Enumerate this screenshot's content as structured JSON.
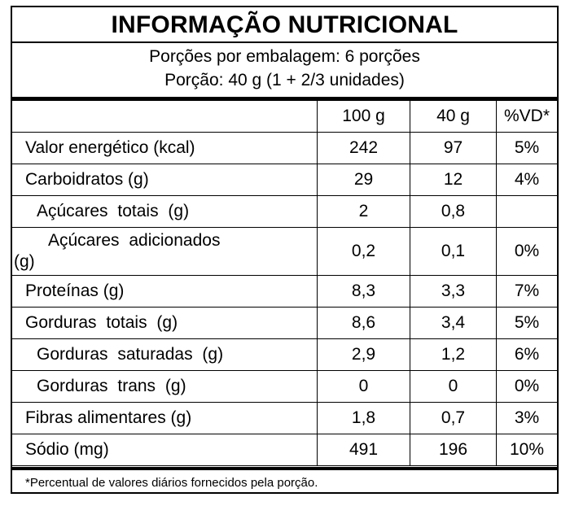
{
  "title": "INFORMAÇÃO NUTRICIONAL",
  "servings_per_package": "Porções por embalagem: 6 porções",
  "serving_size": "Porção: 40 g (1 + 2/3 unidades)",
  "columns": [
    "",
    "100 g",
    "40 g",
    "%VD*"
  ],
  "rows": [
    {
      "name": "Valor energético (kcal)",
      "v100": "242",
      "v40": "97",
      "vd": "5%"
    },
    {
      "name": "Carboidratos (g)",
      "v100": "29",
      "v40": "12",
      "vd": "4%"
    },
    {
      "name": "Açúcares totais (g)",
      "v100": "2",
      "v40": "0,8",
      "vd": ""
    },
    {
      "name_line1": "Açúcares adicionados",
      "name_line2": "(g)",
      "v100": "0,2",
      "v40": "0,1",
      "vd": "0%"
    },
    {
      "name": "Proteínas (g)",
      "v100": "8,3",
      "v40": "3,3",
      "vd": "7%"
    },
    {
      "name": "Gorduras totais (g)",
      "v100": "8,6",
      "v40": "3,4",
      "vd": "5%"
    },
    {
      "name": "Gorduras saturadas (g)",
      "v100": "2,9",
      "v40": "1,2",
      "vd": "6%"
    },
    {
      "name": "Gorduras trans (g)",
      "v100": "0",
      "v40": "0",
      "vd": "0%"
    },
    {
      "name": "Fibras alimentares (g)",
      "v100": "1,8",
      "v40": "0,7",
      "vd": "3%"
    },
    {
      "name": "Sódio (mg)",
      "v100": "491",
      "v40": "196",
      "vd": "10%"
    }
  ],
  "footnote": "*Percentual de valores diários fornecidos pela porção."
}
